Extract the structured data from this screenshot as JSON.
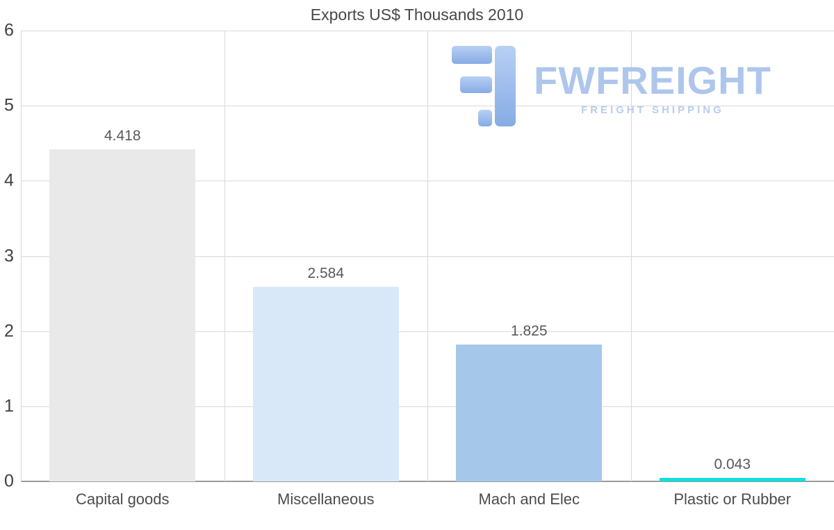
{
  "chart_data": {
    "type": "bar",
    "title": "Exports US$ Thousands 2010",
    "categories": [
      "Capital goods",
      "Miscellaneous",
      "Mach and Elec",
      "Plastic or Rubber"
    ],
    "values": [
      4.418,
      2.584,
      1.825,
      0.043
    ],
    "labels": [
      "4.418",
      "2.584",
      "1.825",
      "0.043"
    ],
    "bar_colors": [
      "#e9e9e9",
      "#d9e8f8",
      "#a5c8ea",
      "#0be0e3"
    ],
    "xlabel": "",
    "ylabel": "",
    "ylim": [
      0,
      6
    ],
    "yticks": [
      0,
      1,
      2,
      3,
      4,
      5,
      6
    ],
    "grid": true,
    "legend": "none"
  },
  "watermark": {
    "brand": "FWFREIGHT",
    "tagline": "FREIGHT SHIPPING",
    "color": "#a6c0eb"
  }
}
